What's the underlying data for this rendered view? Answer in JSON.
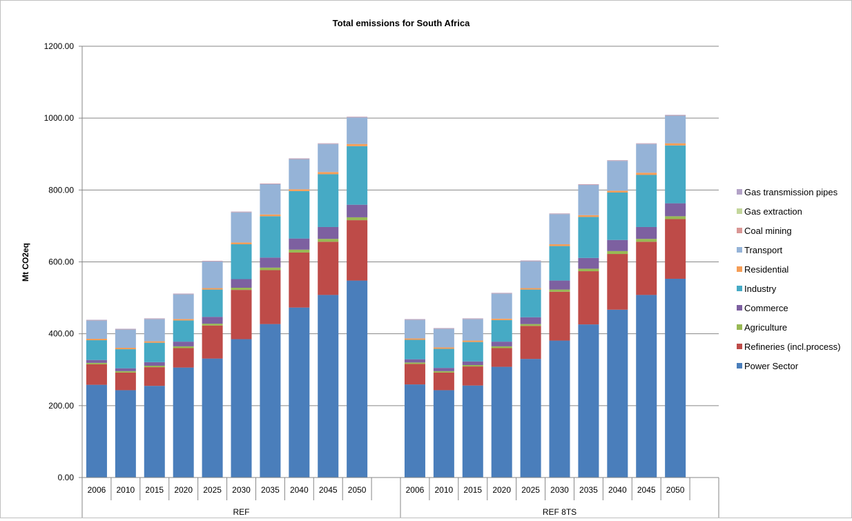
{
  "chart_data": {
    "type": "bar",
    "stacked": true,
    "title": "Total emissions for South Africa",
    "ylabel": "Mt CO2eq",
    "xlabel": "",
    "ylim": [
      0,
      1200
    ],
    "yticks": [
      "0.00",
      "200.00",
      "400.00",
      "600.00",
      "800.00",
      "1000.00",
      "1200.00"
    ],
    "grid": true,
    "legend_position": "right",
    "groups": [
      {
        "name": "REF",
        "categories": [
          "2006",
          "2010",
          "2015",
          "2020",
          "2025",
          "2030",
          "2035",
          "2040",
          "2045",
          "2050"
        ]
      },
      {
        "name": "REF 8TS",
        "categories": [
          "2006",
          "2010",
          "2015",
          "2020",
          "2025",
          "2030",
          "2035",
          "2040",
          "2045",
          "2050"
        ]
      }
    ],
    "series": [
      {
        "name": "Power Sector",
        "color": "#4a7ebb",
        "values": [
          [
            258,
            243,
            255,
            306,
            331,
            385,
            427,
            473,
            508,
            548
          ],
          [
            259,
            243,
            256,
            308,
            330,
            381,
            426,
            467,
            508,
            553
          ]
        ]
      },
      {
        "name": "Refineries (incl.process)",
        "color": "#be4b48",
        "values": [
          [
            57,
            49,
            52,
            54,
            92,
            137,
            150,
            153,
            148,
            168
          ],
          [
            57,
            49,
            53,
            52,
            92,
            136,
            148,
            155,
            148,
            166
          ]
        ]
      },
      {
        "name": "Agriculture",
        "color": "#98b954",
        "values": [
          [
            4,
            4,
            4,
            5,
            5,
            6,
            7,
            8,
            8,
            8
          ],
          [
            4,
            4,
            4,
            5,
            5,
            6,
            7,
            8,
            8,
            8
          ]
        ]
      },
      {
        "name": "Commerce",
        "color": "#7d60a0",
        "values": [
          [
            8,
            8,
            10,
            13,
            19,
            24,
            28,
            31,
            33,
            35
          ],
          [
            9,
            9,
            10,
            13,
            19,
            25,
            30,
            31,
            33,
            36
          ]
        ]
      },
      {
        "name": "Industry",
        "color": "#46aac5",
        "values": [
          [
            55,
            53,
            54,
            59,
            76,
            97,
            115,
            132,
            147,
            163
          ],
          [
            54,
            53,
            54,
            60,
            77,
            96,
            114,
            132,
            145,
            161
          ]
        ]
      },
      {
        "name": "Residential",
        "color": "#f59d56",
        "values": [
          [
            4,
            4,
            4,
            4,
            4,
            5,
            5,
            5,
            6,
            6
          ],
          [
            4,
            4,
            4,
            4,
            4,
            5,
            5,
            5,
            6,
            6
          ]
        ]
      },
      {
        "name": "Transport",
        "color": "#95b3d7",
        "values": [
          [
            51,
            51,
            62,
            69,
            74,
            84,
            84,
            84,
            78,
            74
          ],
          [
            52,
            52,
            60,
            70,
            75,
            84,
            84,
            83,
            80,
            77
          ]
        ]
      },
      {
        "name": "Coal mining",
        "color": "#d99694",
        "values": [
          [
            1,
            1,
            1,
            1,
            1,
            1,
            1,
            1,
            1,
            1
          ],
          [
            1,
            1,
            1,
            1,
            1,
            1,
            1,
            1,
            1,
            1
          ]
        ]
      },
      {
        "name": "Gas extraction",
        "color": "#c3d69b",
        "values": [
          [
            0,
            0,
            0,
            0,
            0,
            0,
            0,
            0,
            0,
            0
          ],
          [
            0,
            0,
            0,
            0,
            0,
            0,
            0,
            0,
            0,
            0
          ]
        ]
      },
      {
        "name": "Gas transmission pipes",
        "color": "#b3a2c7",
        "values": [
          [
            1,
            1,
            1,
            1,
            1,
            1,
            1,
            1,
            1,
            1
          ],
          [
            1,
            1,
            1,
            1,
            1,
            1,
            1,
            1,
            1,
            1
          ]
        ]
      }
    ]
  }
}
